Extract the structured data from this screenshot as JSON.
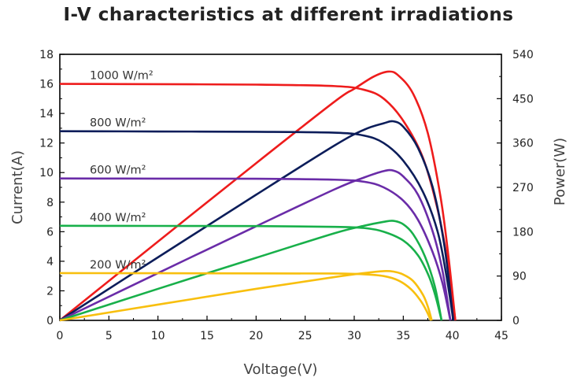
{
  "chart_data": {
    "type": "line",
    "title": "I-V characteristics at different irradiations",
    "xlabel": "Voltage(V)",
    "ylabel": "Current(A)",
    "y2label": "Power(W)",
    "xlim": [
      0,
      45
    ],
    "ylim": [
      0,
      18
    ],
    "y2lim": [
      0,
      540
    ],
    "x_ticks": [
      "0",
      "5",
      "10",
      "15",
      "20",
      "25",
      "30",
      "35",
      "40",
      "45"
    ],
    "y_ticks": [
      "0",
      "2",
      "4",
      "6",
      "8",
      "10",
      "12",
      "14",
      "16",
      "18"
    ],
    "y2_ticks": [
      "0",
      "90",
      "180",
      "270",
      "360",
      "450",
      "540"
    ],
    "grid": false,
    "series": [
      {
        "name": "1000 W/m²",
        "color": "#ee1c1c",
        "iv": [
          [
            0,
            16
          ],
          [
            10,
            15.98
          ],
          [
            20,
            15.95
          ],
          [
            28,
            15.85
          ],
          [
            31,
            15.6
          ],
          [
            33,
            15.0
          ],
          [
            35,
            13.5
          ],
          [
            37,
            11.0
          ],
          [
            38.5,
            7.5
          ],
          [
            39.5,
            4.0
          ],
          [
            40.3,
            0
          ]
        ],
        "pv": [
          [
            0,
            0
          ],
          [
            10,
            160
          ],
          [
            20,
            319
          ],
          [
            28,
            444
          ],
          [
            30,
            470
          ],
          [
            32,
            495
          ],
          [
            33.5,
            505
          ],
          [
            34.5,
            497
          ],
          [
            36,
            460
          ],
          [
            37.5,
            380
          ],
          [
            38.8,
            250
          ],
          [
            39.6,
            130
          ],
          [
            40.3,
            0
          ]
        ]
      },
      {
        "name": "800 W/m²",
        "color": "#0c1d5a",
        "iv": [
          [
            0,
            12.8
          ],
          [
            10,
            12.78
          ],
          [
            20,
            12.76
          ],
          [
            28,
            12.7
          ],
          [
            31,
            12.5
          ],
          [
            33,
            12.0
          ],
          [
            35,
            10.8
          ],
          [
            37,
            8.7
          ],
          [
            38.5,
            6.0
          ],
          [
            39.4,
            3.0
          ],
          [
            40.1,
            0
          ]
        ],
        "pv": [
          [
            0,
            0
          ],
          [
            10,
            128
          ],
          [
            20,
            255
          ],
          [
            28,
            355
          ],
          [
            31,
            387
          ],
          [
            33,
            400
          ],
          [
            34,
            404
          ],
          [
            35,
            393
          ],
          [
            36.5,
            350
          ],
          [
            38,
            270
          ],
          [
            39.2,
            150
          ],
          [
            40.1,
            0
          ]
        ]
      },
      {
        "name": "600 W/m²",
        "color": "#6a2ca8",
        "iv": [
          [
            0,
            9.6
          ],
          [
            10,
            9.59
          ],
          [
            20,
            9.58
          ],
          [
            28,
            9.52
          ],
          [
            31,
            9.38
          ],
          [
            33,
            9.0
          ],
          [
            35,
            8.1
          ],
          [
            36.5,
            6.8
          ],
          [
            38,
            4.6
          ],
          [
            39,
            2.5
          ],
          [
            39.8,
            0
          ]
        ],
        "pv": [
          [
            0,
            0
          ],
          [
            10,
            96
          ],
          [
            20,
            191
          ],
          [
            28,
            266
          ],
          [
            31,
            290
          ],
          [
            33,
            303
          ],
          [
            34,
            304
          ],
          [
            35,
            292
          ],
          [
            36.5,
            255
          ],
          [
            38,
            180
          ],
          [
            39,
            100
          ],
          [
            39.8,
            0
          ]
        ]
      },
      {
        "name": "400 W/m²",
        "color": "#18b04a",
        "iv": [
          [
            0,
            6.4
          ],
          [
            10,
            6.39
          ],
          [
            20,
            6.38
          ],
          [
            28,
            6.33
          ],
          [
            31,
            6.25
          ],
          [
            33,
            6.0
          ],
          [
            35,
            5.4
          ],
          [
            36.5,
            4.4
          ],
          [
            37.6,
            3.0
          ],
          [
            38.3,
            1.6
          ],
          [
            38.9,
            0
          ]
        ],
        "pv": [
          [
            0,
            0
          ],
          [
            10,
            64
          ],
          [
            20,
            127
          ],
          [
            28,
            177
          ],
          [
            31,
            192
          ],
          [
            33,
            200
          ],
          [
            34,
            202
          ],
          [
            35,
            195
          ],
          [
            36,
            175
          ],
          [
            37.2,
            130
          ],
          [
            38.2,
            70
          ],
          [
            38.9,
            0
          ]
        ]
      },
      {
        "name": "200 W/m²",
        "color": "#f8bf0e",
        "iv": [
          [
            0,
            3.2
          ],
          [
            10,
            3.19
          ],
          [
            20,
            3.18
          ],
          [
            28,
            3.17
          ],
          [
            31,
            3.12
          ],
          [
            33,
            3.0
          ],
          [
            34.5,
            2.7
          ],
          [
            35.8,
            2.1
          ],
          [
            36.8,
            1.3
          ],
          [
            37.4,
            0.6
          ],
          [
            37.8,
            0
          ]
        ],
        "pv": [
          [
            0,
            0
          ],
          [
            10,
            32
          ],
          [
            20,
            64
          ],
          [
            28,
            88
          ],
          [
            31,
            96
          ],
          [
            33,
            100
          ],
          [
            34,
            99
          ],
          [
            35,
            93
          ],
          [
            36,
            80
          ],
          [
            37,
            52
          ],
          [
            37.5,
            28
          ],
          [
            37.9,
            0
          ]
        ]
      }
    ]
  }
}
